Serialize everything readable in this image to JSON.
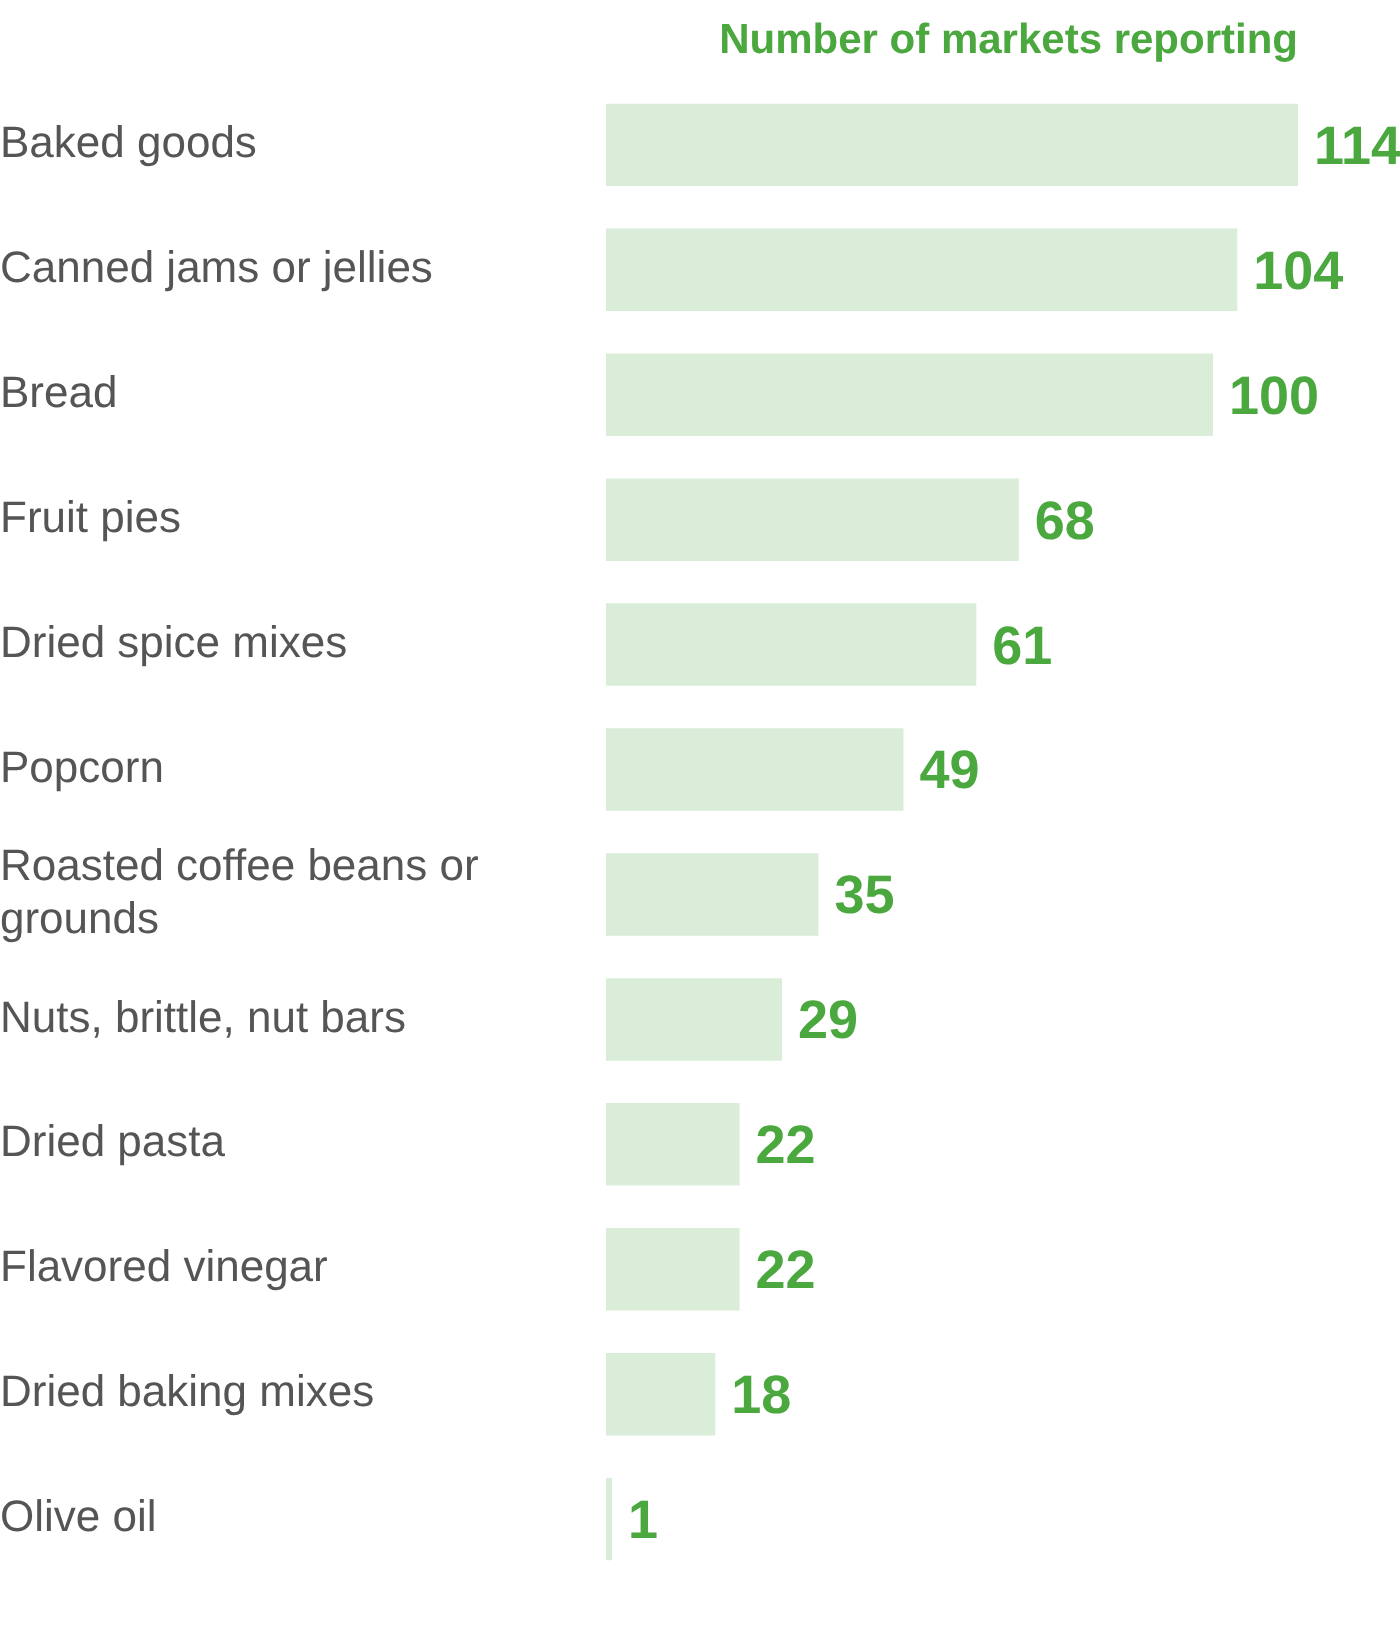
{
  "chart_data": {
    "type": "bar",
    "orientation": "horizontal",
    "title": "Number of markets reporting",
    "categories": [
      "Baked goods",
      "Canned jams or jellies",
      "Bread",
      "Fruit pies",
      "Dried spice mixes",
      "Popcorn",
      "Roasted coffee beans or grounds",
      "Nuts, brittle, nut bars",
      "Dried pasta",
      "Flavored vinegar",
      "Dried baking mixes",
      "Olive oil"
    ],
    "values": [
      114,
      104,
      100,
      68,
      61,
      49,
      35,
      29,
      22,
      22,
      18,
      1
    ],
    "color": "#d9edd9",
    "data_labels": true,
    "legend": false
  }
}
